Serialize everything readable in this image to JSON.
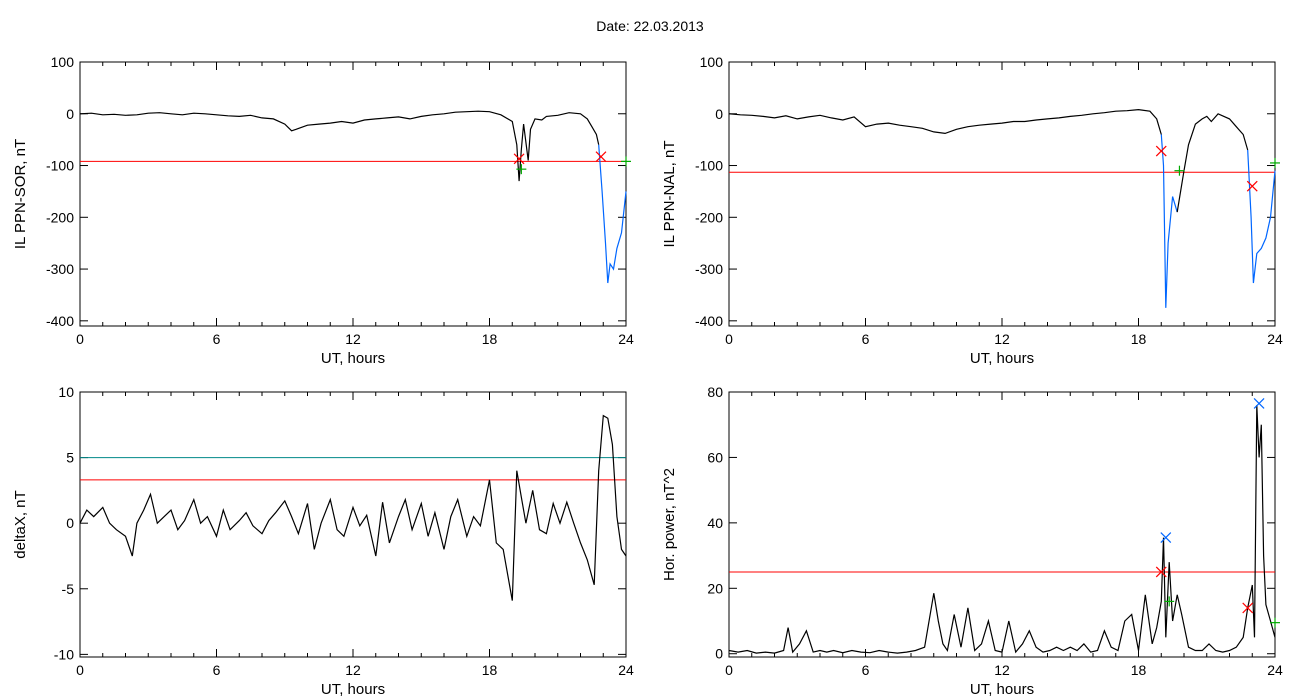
{
  "title": "Date:  22.03.2013",
  "chart_data": [
    {
      "type": "line",
      "ylabel": "IL PPN-SOR, nT",
      "xlabel": "UT, hours",
      "xlim": [
        0,
        24
      ],
      "ylim": [
        -410,
        100
      ],
      "xticks": [
        0,
        6,
        12,
        18,
        24
      ],
      "yticks": [
        100,
        0,
        -100,
        -200,
        -300,
        -400
      ],
      "threshold": {
        "y": -92,
        "color": "#ff0000"
      },
      "series": [
        {
          "color": "#000000",
          "x": [
            0,
            0.5,
            1,
            1.5,
            2,
            2.5,
            3,
            3.5,
            4,
            4.5,
            5,
            5.5,
            6,
            6.5,
            7,
            7.5,
            8,
            8.5,
            9,
            9.3,
            9.5,
            10,
            10.5,
            11,
            11.5,
            12,
            12.5,
            13,
            13.5,
            14,
            14.5,
            15,
            15.5,
            16,
            16.5,
            17,
            17.5,
            18,
            18.5,
            19,
            19.2,
            19.3,
            19.4,
            19.5,
            19.7,
            19.8,
            20,
            20.3,
            20.5,
            21,
            21.5,
            22,
            22.3,
            22.5,
            22.7,
            22.8
          ],
          "y": [
            0,
            1,
            -2,
            -1,
            -3,
            -2,
            1,
            2,
            0,
            -2,
            1,
            0,
            -2,
            -4,
            -5,
            -3,
            -8,
            -10,
            -20,
            -33,
            -30,
            -22,
            -20,
            -18,
            -15,
            -18,
            -12,
            -10,
            -8,
            -6,
            -10,
            -5,
            -2,
            0,
            3,
            4,
            5,
            4,
            -2,
            -15,
            -60,
            -130,
            -70,
            -20,
            -90,
            -30,
            -10,
            -12,
            -5,
            -3,
            2,
            0,
            -10,
            -25,
            -40,
            -60
          ]
        },
        {
          "color": "#0066ff",
          "x": [
            22.8,
            22.95,
            23.1,
            23.2,
            23.3,
            23.45,
            23.6,
            23.8,
            24
          ],
          "y": [
            -60,
            -150,
            -250,
            -327,
            -290,
            -300,
            -260,
            -230,
            -150
          ]
        }
      ],
      "markers": [
        {
          "x": 19.3,
          "y": -87,
          "color": "#ff0000",
          "symbol": "x"
        },
        {
          "x": 19.4,
          "y": -107,
          "color": "#00aa00",
          "symbol": "+"
        },
        {
          "x": 22.9,
          "y": -83,
          "color": "#ff0000",
          "symbol": "x"
        },
        {
          "x": 24,
          "y": -92,
          "color": "#00aa00",
          "symbol": "+"
        }
      ]
    },
    {
      "type": "line",
      "ylabel": "IL PPN-NAL, nT",
      "xlabel": "UT, hours",
      "xlim": [
        0,
        24
      ],
      "ylim": [
        -410,
        100
      ],
      "xticks": [
        0,
        6,
        12,
        18,
        24
      ],
      "yticks": [
        100,
        0,
        -100,
        -200,
        -300,
        -400
      ],
      "threshold": {
        "y": -113,
        "color": "#ff0000"
      },
      "series": [
        {
          "color": "#000000",
          "x": [
            0,
            0.5,
            1,
            1.5,
            2,
            2.5,
            3,
            3.5,
            4,
            4.5,
            5,
            5.5,
            6,
            6.5,
            7,
            7.5,
            8,
            8.5,
            9,
            9.5,
            10,
            10.5,
            11,
            11.5,
            12,
            12.5,
            13,
            13.5,
            14,
            14.5,
            15,
            15.5,
            16,
            16.5,
            17,
            17.5,
            18,
            18.5,
            18.8,
            19.0
          ],
          "y": [
            0,
            -2,
            -3,
            -5,
            -8,
            -4,
            -10,
            -6,
            -3,
            -8,
            -12,
            -6,
            -25,
            -20,
            -18,
            -22,
            -25,
            -28,
            -35,
            -38,
            -30,
            -25,
            -22,
            -20,
            -18,
            -15,
            -15,
            -12,
            -10,
            -8,
            -5,
            -3,
            0,
            2,
            5,
            6,
            8,
            5,
            -10,
            -40
          ]
        },
        {
          "color": "#0066ff",
          "x": [
            19.0,
            19.1,
            19.2,
            19.3,
            19.5,
            19.7
          ],
          "y": [
            -40,
            -100,
            -375,
            -250,
            -160,
            -190
          ]
        },
        {
          "color": "#000000",
          "x": [
            19.7,
            20,
            20.2,
            20.5,
            20.8,
            21,
            21.2,
            21.5,
            22,
            22.3,
            22.6,
            22.8
          ],
          "y": [
            -190,
            -110,
            -60,
            -20,
            -10,
            -5,
            -15,
            0,
            -10,
            -25,
            -40,
            -70
          ]
        },
        {
          "color": "#0066ff",
          "x": [
            22.8,
            22.95,
            23.05,
            23.2,
            23.4,
            23.6,
            23.8,
            24
          ],
          "y": [
            -70,
            -200,
            -327,
            -270,
            -260,
            -240,
            -200,
            -110
          ]
        }
      ],
      "markers": [
        {
          "x": 19.0,
          "y": -72,
          "color": "#ff0000",
          "symbol": "x"
        },
        {
          "x": 19.8,
          "y": -110,
          "color": "#00aa00",
          "symbol": "+"
        },
        {
          "x": 23.0,
          "y": -140,
          "color": "#ff0000",
          "symbol": "x"
        },
        {
          "x": 24,
          "y": -95,
          "color": "#00aa00",
          "symbol": "+"
        }
      ]
    },
    {
      "type": "line",
      "ylabel": "deltaX, nT",
      "xlabel": "UT, hours",
      "xlim": [
        0,
        24
      ],
      "ylim": [
        -10.2,
        10
      ],
      "xticks": [
        0,
        6,
        12,
        18,
        24
      ],
      "yticks": [
        10,
        5,
        0,
        -5,
        -10
      ],
      "threshold": {
        "y": 3.3,
        "color": "#ff0000"
      },
      "threshold2": {
        "y": 5.0,
        "color": "#008888"
      },
      "series": [
        {
          "color": "#000000",
          "x": [
            0,
            0.3,
            0.6,
            1,
            1.3,
            1.6,
            2,
            2.3,
            2.5,
            2.8,
            3.1,
            3.4,
            3.7,
            4,
            4.3,
            4.6,
            5,
            5.3,
            5.6,
            6,
            6.3,
            6.6,
            7,
            7.3,
            7.6,
            8,
            8.3,
            8.6,
            9,
            9.3,
            9.6,
            10,
            10.3,
            10.6,
            11,
            11.3,
            11.6,
            12,
            12.3,
            12.6,
            13,
            13.3,
            13.6,
            14,
            14.3,
            14.6,
            15,
            15.3,
            15.6,
            16,
            16.3,
            16.6,
            17,
            17.3,
            17.6,
            18,
            18.3,
            18.6,
            19,
            19.2,
            19.4,
            19.6,
            19.9,
            20.2,
            20.5,
            20.8,
            21.1,
            21.4,
            21.7,
            22,
            22.3,
            22.6,
            22.8,
            23,
            23.2,
            23.4,
            23.6,
            23.8,
            24
          ],
          "y": [
            0,
            1,
            0.5,
            1.2,
            0,
            -0.5,
            -1,
            -2.5,
            0,
            1,
            2.2,
            0,
            0.5,
            1,
            -0.5,
            0.2,
            1.8,
            0,
            0.5,
            -1,
            1,
            -0.5,
            0.2,
            0.8,
            -0.2,
            -0.8,
            0.2,
            0.8,
            1.7,
            0.5,
            -0.8,
            1.5,
            -2,
            0,
            1.8,
            -0.5,
            -1,
            1.2,
            -0.2,
            0.6,
            -2.5,
            1.6,
            -1.5,
            0.5,
            1.8,
            -0.5,
            1.5,
            -1,
            0.8,
            -2,
            0.5,
            1.8,
            -1,
            0.5,
            -0.2,
            3.3,
            -1.5,
            -2,
            -5.9,
            4,
            2,
            0,
            2.5,
            -0.5,
            -0.8,
            1.5,
            0,
            1.6,
            0,
            -1.5,
            -2.8,
            -4.7,
            4,
            8.2,
            8,
            6,
            0.5,
            -2,
            -2.5
          ]
        }
      ],
      "markers": []
    },
    {
      "type": "line",
      "ylabel": "Hor. power, nT^2",
      "xlabel": "UT, hours",
      "xlim": [
        0,
        24
      ],
      "ylim": [
        -1,
        80
      ],
      "xticks": [
        0,
        6,
        12,
        18,
        24
      ],
      "yticks": [
        80,
        60,
        40,
        20,
        0
      ],
      "threshold": {
        "y": 25,
        "color": "#ff0000"
      },
      "series": [
        {
          "color": "#000000",
          "x": [
            0,
            0.4,
            0.8,
            1.2,
            1.6,
            2,
            2.4,
            2.6,
            2.8,
            3.1,
            3.4,
            3.7,
            4,
            4.3,
            4.6,
            5,
            5.4,
            5.8,
            6.2,
            6.6,
            7,
            7.4,
            7.8,
            8.2,
            8.6,
            9,
            9.2,
            9.4,
            9.6,
            9.9,
            10.2,
            10.5,
            10.8,
            11.1,
            11.4,
            11.7,
            12,
            12.3,
            12.6,
            12.9,
            13.2,
            13.5,
            13.8,
            14.1,
            14.4,
            14.7,
            15,
            15.3,
            15.6,
            15.9,
            16.2,
            16.5,
            16.8,
            17.1,
            17.4,
            17.7,
            18,
            18.3,
            18.6,
            18.8,
            19.0,
            19.1,
            19.2,
            19.35,
            19.5,
            19.7,
            19.9,
            20.2,
            20.5,
            20.8,
            21.1,
            21.4,
            21.7,
            22,
            22.3,
            22.6,
            22.8,
            23.0,
            23.1,
            23.2,
            23.3,
            23.4,
            23.5,
            23.6,
            23.8,
            24
          ],
          "y": [
            1,
            0.5,
            1,
            0.2,
            0.5,
            0.2,
            1,
            8,
            0.5,
            3,
            7,
            0.5,
            1,
            0.5,
            1,
            0.3,
            1,
            0.5,
            0.3,
            1,
            0.5,
            0.2,
            0.5,
            1,
            2,
            18.5,
            10,
            3,
            1,
            12,
            2,
            14,
            1,
            3,
            10,
            1,
            0.5,
            10,
            0.5,
            3,
            7,
            2,
            0.5,
            1,
            2,
            1,
            2,
            1,
            3,
            0.5,
            1,
            7,
            2,
            1,
            10,
            12,
            1,
            18,
            3,
            8,
            16,
            35.5,
            5,
            28,
            10,
            18,
            12,
            2,
            1,
            1,
            3,
            1,
            0.5,
            1,
            2,
            5,
            14,
            21,
            5,
            76,
            60,
            70,
            30,
            15,
            10,
            5
          ]
        }
      ],
      "markers": [
        {
          "x": 19.0,
          "y": 25,
          "color": "#ff0000",
          "symbol": "x"
        },
        {
          "x": 19.2,
          "y": 35.5,
          "color": "#0066ff",
          "symbol": "x"
        },
        {
          "x": 19.35,
          "y": 16,
          "color": "#00aa00",
          "symbol": "+"
        },
        {
          "x": 22.8,
          "y": 14,
          "color": "#ff0000",
          "symbol": "x"
        },
        {
          "x": 23.3,
          "y": 76.5,
          "color": "#0066ff",
          "symbol": "x"
        },
        {
          "x": 24,
          "y": 9.5,
          "color": "#00aa00",
          "symbol": "+"
        }
      ]
    }
  ]
}
